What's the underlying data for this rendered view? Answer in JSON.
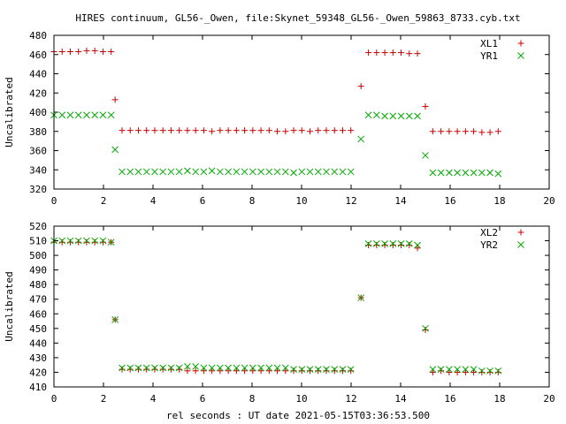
{
  "title": "HIRES continuum, GL56-_Owen, file:Skynet_59348_GL56-_Owen_59863_8733.cyb.txt",
  "xlabel": "rel seconds : UT date 2021-05-15T03:36:53.500",
  "colors": {
    "plus_series": "#cc0000",
    "x_series": "#00aa00"
  },
  "chart_data": [
    {
      "type": "scatter",
      "ylabel": "Uncalibrated",
      "xlim": [
        0,
        20
      ],
      "ylim": [
        320,
        480
      ],
      "xticks": [
        0,
        2,
        4,
        6,
        8,
        10,
        12,
        14,
        16,
        18,
        20
      ],
      "yticks": [
        320,
        340,
        360,
        380,
        400,
        420,
        440,
        460,
        480
      ],
      "grid": false,
      "legend": "top-right",
      "series": [
        {
          "name": "XL1",
          "marker": "plus",
          "color": "#cc0000",
          "x": [
            0,
            0.33,
            0.66,
            0.99,
            1.32,
            1.65,
            1.98,
            2.31,
            2.47,
            2.75,
            3.08,
            3.41,
            3.74,
            4.07,
            4.4,
            4.73,
            5.06,
            5.39,
            5.72,
            6.05,
            6.38,
            6.71,
            7.04,
            7.37,
            7.7,
            8.03,
            8.36,
            8.69,
            9.02,
            9.35,
            9.68,
            10.01,
            10.34,
            10.67,
            11.0,
            11.33,
            11.66,
            11.99,
            12.4,
            12.7,
            13.03,
            13.36,
            13.69,
            14.02,
            14.35,
            14.68,
            15.0,
            15.3,
            15.63,
            15.96,
            16.29,
            16.62,
            16.95,
            17.28,
            17.61,
            17.94
          ],
          "y": [
            463,
            463,
            463,
            463,
            464,
            464,
            463,
            463,
            413,
            381,
            381,
            381,
            381,
            381,
            381,
            381,
            381,
            381,
            381,
            381,
            380,
            381,
            381,
            381,
            381,
            381,
            381,
            381,
            380,
            380,
            381,
            381,
            380,
            381,
            381,
            381,
            381,
            381,
            427,
            462,
            462,
            462,
            462,
            462,
            461,
            461,
            406,
            380,
            380,
            380,
            380,
            380,
            380,
            379,
            379,
            380
          ]
        },
        {
          "name": "YR1",
          "marker": "x",
          "color": "#00aa00",
          "x": [
            0,
            0.33,
            0.66,
            0.99,
            1.32,
            1.65,
            1.98,
            2.31,
            2.47,
            2.75,
            3.08,
            3.41,
            3.74,
            4.07,
            4.4,
            4.73,
            5.06,
            5.39,
            5.72,
            6.05,
            6.38,
            6.71,
            7.04,
            7.37,
            7.7,
            8.03,
            8.36,
            8.69,
            9.02,
            9.35,
            9.68,
            10.01,
            10.34,
            10.67,
            11.0,
            11.33,
            11.66,
            11.99,
            12.4,
            12.7,
            13.03,
            13.36,
            13.69,
            14.02,
            14.35,
            14.68,
            15.0,
            15.3,
            15.63,
            15.96,
            16.29,
            16.62,
            16.95,
            17.28,
            17.61,
            17.94
          ],
          "y": [
            397,
            397,
            397,
            397,
            397,
            397,
            397,
            397,
            361,
            338,
            338,
            338,
            338,
            338,
            338,
            338,
            338,
            339,
            338,
            338,
            339,
            338,
            338,
            338,
            338,
            338,
            338,
            338,
            338,
            338,
            337,
            338,
            338,
            338,
            338,
            338,
            338,
            338,
            372,
            397,
            397,
            396,
            396,
            396,
            396,
            396,
            355,
            337,
            337,
            337,
            337,
            337,
            337,
            337,
            337,
            336
          ]
        }
      ]
    },
    {
      "type": "scatter",
      "ylabel": "Uncalibrated",
      "xlim": [
        0,
        20
      ],
      "ylim": [
        410,
        520
      ],
      "xticks": [
        0,
        2,
        4,
        6,
        8,
        10,
        12,
        14,
        16,
        18,
        20
      ],
      "yticks": [
        410,
        420,
        430,
        440,
        450,
        460,
        470,
        480,
        490,
        500,
        510,
        520
      ],
      "grid": false,
      "legend": "top-right",
      "series": [
        {
          "name": "XL2",
          "marker": "plus",
          "color": "#cc0000",
          "x": [
            0,
            0.33,
            0.66,
            0.99,
            1.32,
            1.65,
            1.98,
            2.31,
            2.47,
            2.75,
            3.08,
            3.41,
            3.74,
            4.07,
            4.4,
            4.73,
            5.06,
            5.39,
            5.72,
            6.05,
            6.38,
            6.71,
            7.04,
            7.37,
            7.7,
            8.03,
            8.36,
            8.69,
            9.02,
            9.35,
            9.68,
            10.01,
            10.34,
            10.67,
            11.0,
            11.33,
            11.66,
            11.99,
            12.4,
            12.7,
            13.03,
            13.36,
            13.69,
            14.02,
            14.35,
            14.68,
            15.0,
            15.3,
            15.63,
            15.96,
            16.29,
            16.62,
            16.95,
            17.28,
            17.61,
            17.94
          ],
          "y": [
            509,
            509,
            509,
            509,
            509,
            509,
            509,
            509,
            456,
            422,
            422,
            422,
            422,
            422,
            422,
            422,
            422,
            421,
            421,
            421,
            421,
            421,
            421,
            421,
            421,
            421,
            421,
            421,
            421,
            421,
            421,
            421,
            421,
            421,
            421,
            421,
            421,
            421,
            471,
            507,
            507,
            507,
            507,
            507,
            507,
            505,
            449,
            420,
            421,
            420,
            420,
            420,
            420,
            420,
            420,
            420
          ]
        },
        {
          "name": "YR2",
          "marker": "x",
          "color": "#00aa00",
          "x": [
            0,
            0.33,
            0.66,
            0.99,
            1.32,
            1.65,
            1.98,
            2.31,
            2.47,
            2.75,
            3.08,
            3.41,
            3.74,
            4.07,
            4.4,
            4.73,
            5.06,
            5.39,
            5.72,
            6.05,
            6.38,
            6.71,
            7.04,
            7.37,
            7.7,
            8.03,
            8.36,
            8.69,
            9.02,
            9.35,
            9.68,
            10.01,
            10.34,
            10.67,
            11.0,
            11.33,
            11.66,
            11.99,
            12.4,
            12.7,
            13.03,
            13.36,
            13.69,
            14.02,
            14.35,
            14.68,
            15.0,
            15.3,
            15.63,
            15.96,
            16.29,
            16.62,
            16.95,
            17.28,
            17.61,
            17.94
          ],
          "y": [
            510,
            510,
            510,
            510,
            510,
            510,
            510,
            509,
            456,
            423,
            423,
            423,
            423,
            423,
            423,
            423,
            423,
            424,
            424,
            423,
            423,
            423,
            423,
            423,
            423,
            423,
            423,
            423,
            423,
            423,
            422,
            422,
            422,
            422,
            422,
            422,
            422,
            422,
            471,
            508,
            508,
            508,
            508,
            508,
            508,
            507,
            450,
            422,
            422,
            422,
            422,
            422,
            422,
            421,
            421,
            421
          ]
        }
      ]
    }
  ]
}
